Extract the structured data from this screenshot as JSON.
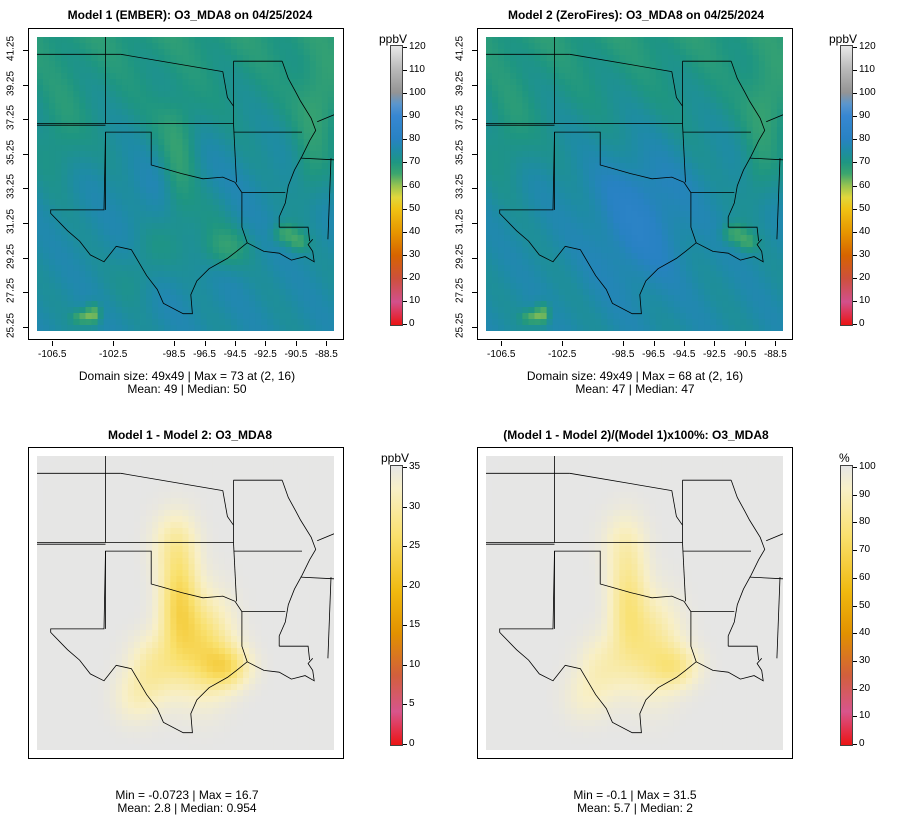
{
  "panels": [
    {
      "title": "Model 1 (EMBER): O3_MDA8 on 04/25/2024",
      "unit": "ppbV",
      "field": "model1",
      "colorbar": {
        "ticks": [
          "120",
          "110",
          "100",
          "90",
          "80",
          "70",
          "60",
          "50",
          "40",
          "30",
          "20",
          "10",
          "0"
        ],
        "type": "ozone"
      },
      "x_ticks": [
        "-106.5",
        "-102.5",
        "-98.5",
        "-96.5",
        "-94.5",
        "-92.5",
        "-90.5",
        "-88.5"
      ],
      "y_ticks": [
        "41.25",
        "39.25",
        "37.25",
        "35.25",
        "33.25",
        "31.25",
        "29.25",
        "27.25",
        "25.25"
      ],
      "stats_line1": "Domain size: 49x49 | Max = 73 at (2, 16)",
      "stats_line2": "Mean: 49 |  Median: 50"
    },
    {
      "title": "Model 2 (ZeroFires): O3_MDA8 on 04/25/2024",
      "unit": "ppbV",
      "field": "model2",
      "colorbar": {
        "ticks": [
          "120",
          "110",
          "100",
          "90",
          "80",
          "70",
          "60",
          "50",
          "40",
          "30",
          "20",
          "10",
          "0"
        ],
        "type": "ozone"
      },
      "x_ticks": [
        "-106.5",
        "-102.5",
        "-98.5",
        "-96.5",
        "-94.5",
        "-92.5",
        "-90.5",
        "-88.5"
      ],
      "y_ticks": [
        "41.25",
        "39.25",
        "37.25",
        "35.25",
        "33.25",
        "31.25",
        "29.25",
        "27.25",
        "25.25"
      ],
      "stats_line1": "Domain size: 49x49 | Max = 68 at (2, 16)",
      "stats_line2": "Mean: 47 |  Median: 47"
    },
    {
      "title": "Model 1 - Model 2: O3_MDA8",
      "unit": "ppbV",
      "field": "diff",
      "colorbar": {
        "ticks": [
          "35",
          "30",
          "25",
          "20",
          "15",
          "10",
          "5",
          "0"
        ],
        "type": "diff"
      },
      "x_ticks": [],
      "y_ticks": [],
      "stats_line1": "Min = -0.0723 | Max = 16.7",
      "stats_line2": "Mean: 2.8 |  Median: 0.954"
    },
    {
      "title": "(Model 1 - Model 2)/(Model 1)x100%: O3_MDA8",
      "unit": "%",
      "field": "pct",
      "colorbar": {
        "ticks": [
          "100",
          "90",
          "80",
          "70",
          "60",
          "50",
          "40",
          "30",
          "20",
          "10",
          "0"
        ],
        "type": "diff"
      },
      "x_ticks": [],
      "y_ticks": [],
      "stats_line1": "Min = -0.1 | Max = 31.5",
      "stats_line2": "Mean: 5.7 |  Median: 2"
    }
  ]
}
